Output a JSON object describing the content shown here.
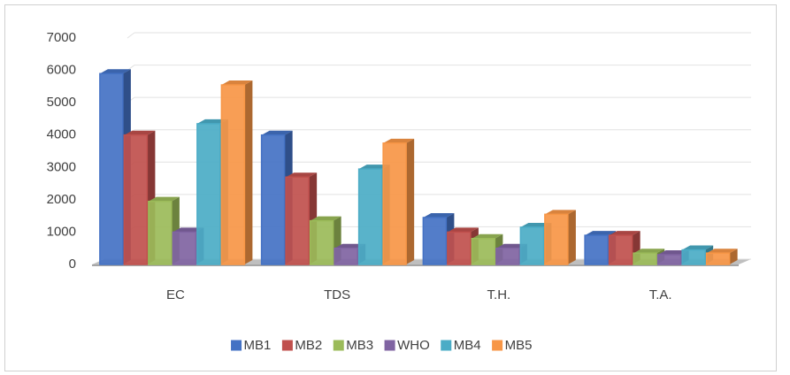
{
  "chart_data": {
    "type": "bar3d",
    "categories": [
      "EC",
      "TDS",
      "T.H.",
      "T.A."
    ],
    "series": [
      {
        "name": "MB1",
        "color": "#4472c4",
        "values": [
          5900,
          4000,
          1450,
          900
        ]
      },
      {
        "name": "MB2",
        "color": "#c0504d",
        "values": [
          4000,
          2700,
          1000,
          900
        ]
      },
      {
        "name": "MB3",
        "color": "#9bbb59",
        "values": [
          1950,
          1350,
          800,
          350
        ]
      },
      {
        "name": "WHO",
        "color": "#8064a2",
        "values": [
          1000,
          500,
          500,
          300
        ]
      },
      {
        "name": "MB4",
        "color": "#4bacc6",
        "values": [
          4350,
          2950,
          1150,
          450
        ]
      },
      {
        "name": "MB5",
        "color": "#f79646",
        "values": [
          5550,
          3750,
          1550,
          350
        ]
      }
    ],
    "ylim": [
      0,
      7000
    ],
    "yticks": [
      0,
      1000,
      2000,
      3000,
      4000,
      5000,
      6000,
      7000
    ],
    "grid": true,
    "legend": "bottom"
  }
}
